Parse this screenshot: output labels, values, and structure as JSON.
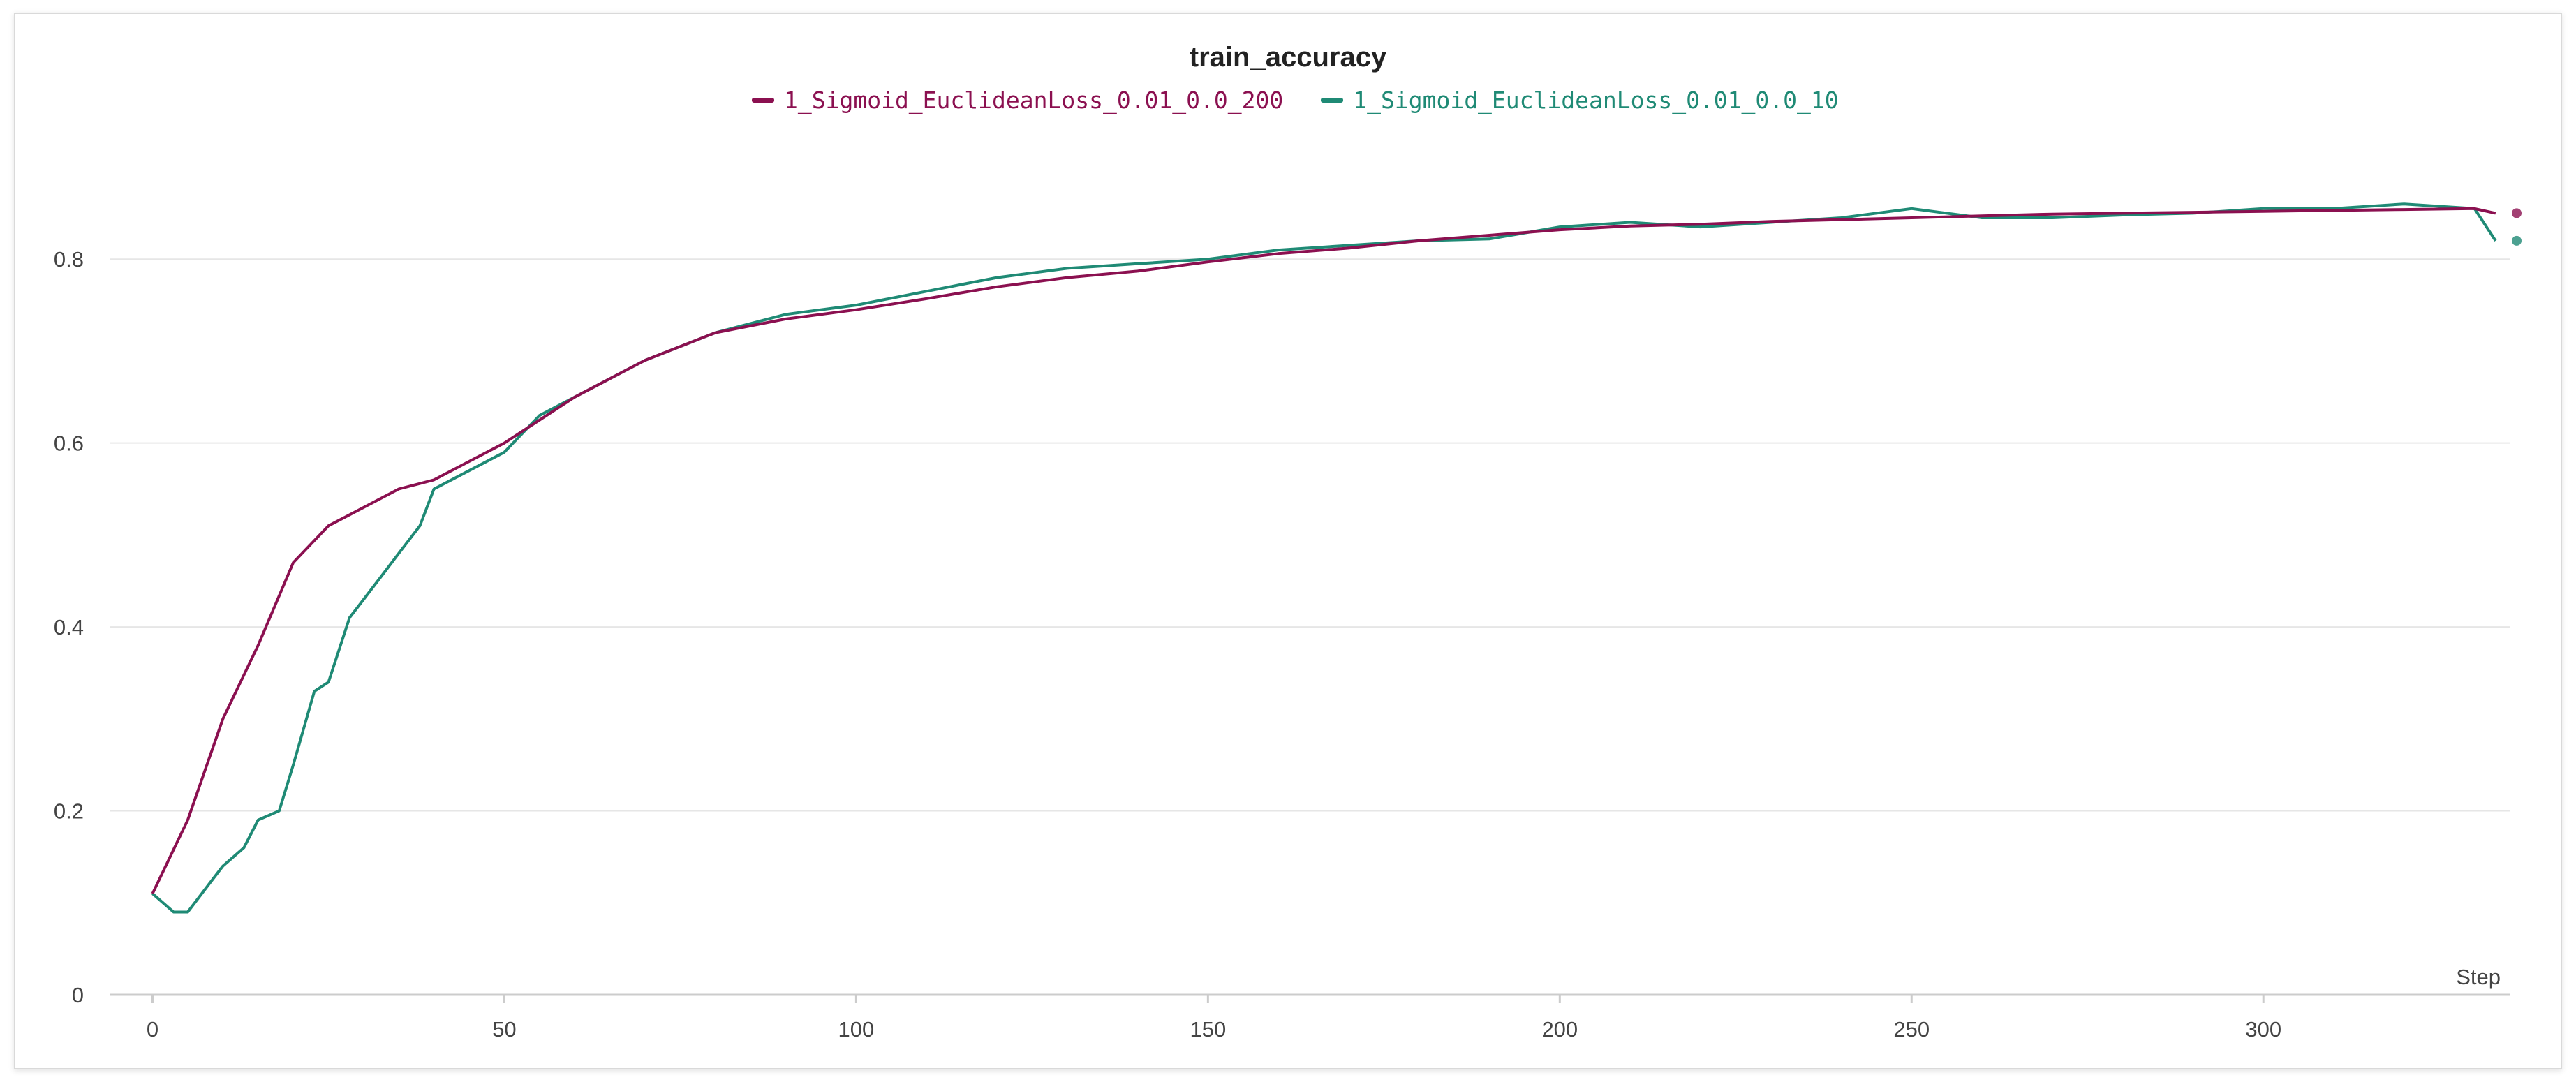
{
  "chart_data": {
    "type": "line",
    "title": "train_accuracy",
    "xlabel": "Step",
    "ylabel": "",
    "xlim": [
      -6,
      335
    ],
    "ylim": [
      0,
      0.93
    ],
    "x_ticks": [
      0,
      50,
      100,
      150,
      200,
      250,
      300
    ],
    "y_ticks": [
      0,
      0.2,
      0.4,
      0.6,
      0.8
    ],
    "x_tick_labels": [
      "0",
      "50",
      "100",
      "150",
      "200",
      "250",
      "300"
    ],
    "y_tick_labels": [
      "0",
      "0.2",
      "0.4",
      "0.6",
      "0.8"
    ],
    "grid": true,
    "legend": "top-center",
    "series": [
      {
        "name": "1_Sigmoid_EuclideanLoss_0.01_0.0_200",
        "color": "#8b1050",
        "x": [
          0,
          5,
          10,
          15,
          20,
          25,
          30,
          35,
          40,
          45,
          50,
          60,
          70,
          80,
          90,
          100,
          110,
          120,
          130,
          140,
          150,
          160,
          170,
          180,
          190,
          200,
          210,
          220,
          230,
          240,
          250,
          260,
          270,
          280,
          290,
          300,
          310,
          320,
          330,
          333
        ],
        "values": [
          0.11,
          0.19,
          0.3,
          0.38,
          0.47,
          0.51,
          0.53,
          0.55,
          0.56,
          0.58,
          0.6,
          0.65,
          0.69,
          0.72,
          0.735,
          0.745,
          0.757,
          0.77,
          0.78,
          0.787,
          0.797,
          0.806,
          0.812,
          0.82,
          0.826,
          0.832,
          0.836,
          0.838,
          0.841,
          0.843,
          0.845,
          0.847,
          0.849,
          0.85,
          0.851,
          0.852,
          0.853,
          0.854,
          0.855,
          0.85
        ]
      },
      {
        "name": "1_Sigmoid_EuclideanLoss_0.01_0.0_10",
        "color": "#1f8a75",
        "x": [
          0,
          3,
          5,
          8,
          10,
          13,
          15,
          18,
          20,
          23,
          25,
          28,
          30,
          33,
          35,
          38,
          40,
          45,
          50,
          55,
          60,
          70,
          80,
          90,
          100,
          110,
          120,
          130,
          140,
          150,
          160,
          170,
          180,
          190,
          200,
          210,
          220,
          230,
          240,
          250,
          260,
          270,
          280,
          290,
          300,
          310,
          320,
          330,
          333
        ],
        "values": [
          0.11,
          0.09,
          0.09,
          0.12,
          0.14,
          0.16,
          0.19,
          0.2,
          0.25,
          0.33,
          0.34,
          0.41,
          0.43,
          0.46,
          0.48,
          0.51,
          0.55,
          0.57,
          0.59,
          0.63,
          0.65,
          0.69,
          0.72,
          0.74,
          0.75,
          0.765,
          0.78,
          0.79,
          0.795,
          0.8,
          0.81,
          0.815,
          0.82,
          0.822,
          0.835,
          0.84,
          0.835,
          0.84,
          0.845,
          0.855,
          0.845,
          0.845,
          0.848,
          0.85,
          0.855,
          0.855,
          0.86,
          0.855,
          0.82
        ]
      }
    ]
  }
}
